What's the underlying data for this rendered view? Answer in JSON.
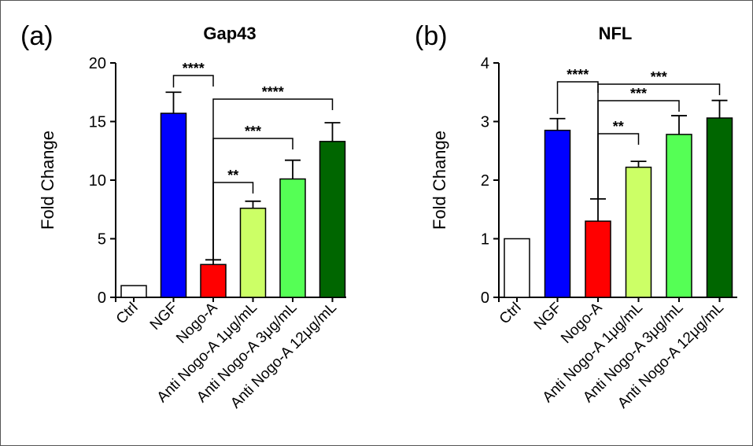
{
  "chart_data": [
    {
      "type": "bar",
      "panel_label": "(a)",
      "title": "Gap43",
      "ylabel": "Fold Change",
      "ylim": [
        0,
        20
      ],
      "yticks": [
        "0",
        "5",
        "10",
        "15",
        "20"
      ],
      "categories": [
        "Ctrl",
        "NGF",
        "Nogo-A",
        "Anti Nogo-A 1μg/mL",
        "Anti Nogo-A 3μg/mL",
        "Anti Nogo-A 12μg/mL"
      ],
      "values": [
        1.0,
        15.7,
        2.8,
        7.6,
        10.1,
        13.3
      ],
      "errors": [
        0,
        1.8,
        0.4,
        0.6,
        1.6,
        1.6
      ],
      "colors": [
        "#ffffff",
        "#0000ff",
        "#ff0000",
        "#ccff66",
        "#55ff55",
        "#006600"
      ],
      "significance": [
        {
          "from": 1,
          "to": 2,
          "label": "****"
        },
        {
          "from": 2,
          "to": 5,
          "label": "****"
        },
        {
          "from": 2,
          "to": 4,
          "label": "***"
        },
        {
          "from": 2,
          "to": 3,
          "label": "**"
        }
      ]
    },
    {
      "type": "bar",
      "panel_label": "(b)",
      "title": "NFL",
      "ylabel": "Fold Change",
      "ylim": [
        0,
        4
      ],
      "yticks": [
        "0",
        "1",
        "2",
        "3",
        "4"
      ],
      "categories": [
        "Ctrl",
        "NGF",
        "Nogo-A",
        "Anti Nogo-A 1μg/mL",
        "Anti Nogo-A 3μg/mL",
        "Anti Nogo-A 12μg/mL"
      ],
      "values": [
        1.0,
        2.85,
        1.3,
        2.22,
        2.78,
        3.06
      ],
      "errors": [
        0,
        0.2,
        0.38,
        0.1,
        0.32,
        0.3
      ],
      "colors": [
        "#ffffff",
        "#0000ff",
        "#ff0000",
        "#ccff66",
        "#55ff55",
        "#006600"
      ],
      "significance": [
        {
          "from": 1,
          "to": 2,
          "label": "****"
        },
        {
          "from": 2,
          "to": 5,
          "label": "***"
        },
        {
          "from": 2,
          "to": 4,
          "label": "***"
        },
        {
          "from": 2,
          "to": 3,
          "label": "**"
        }
      ]
    }
  ]
}
